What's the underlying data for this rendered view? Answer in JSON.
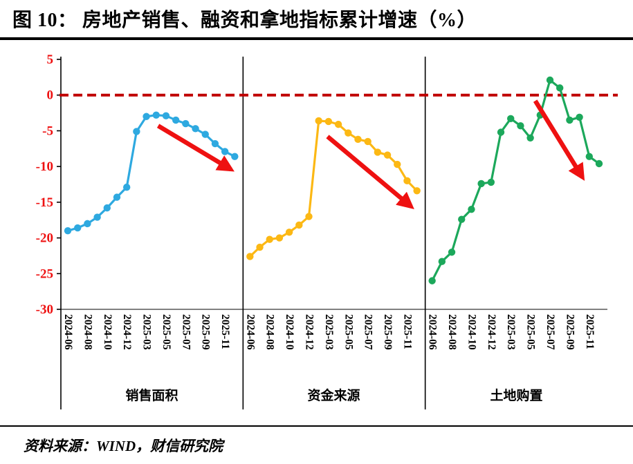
{
  "header": {
    "title": "图 10：  房地产销售、融资和拿地指标累计增速（%）"
  },
  "footer": {
    "source": "资料来源：WIND，财信研究院"
  },
  "chart_data": {
    "type": "line",
    "figure_label": "图 10",
    "title": "房地产销售、融资和拿地指标累计增速（%）",
    "unit": "%",
    "ylim": [
      -30,
      5
    ],
    "y_ticks": [
      5,
      0,
      -5,
      -10,
      -15,
      -20,
      -25,
      -30
    ],
    "grid": false,
    "x": [
      "2024-06",
      "2024-07",
      "2024-08",
      "2024-09",
      "2024-10",
      "2024-11",
      "2024-12",
      "2025-02",
      "2025-03",
      "2025-04",
      "2025-05",
      "2025-06",
      "2025-07",
      "2025-08",
      "2025-09",
      "2025-10",
      "2025-11",
      "2025-12"
    ],
    "x_labels_shown": [
      "2024-06",
      "2024-08",
      "2024-10",
      "2024-12",
      "2025-03",
      "2025-05",
      "2025-07",
      "2025-09",
      "2025-11"
    ],
    "zero_line": {
      "value": 0,
      "style": "dashed",
      "color": "#C00000"
    },
    "colors": {
      "axis": "#000000",
      "red": "#EE1111",
      "zero_line": "#C00000",
      "arrow": "#EE1111"
    },
    "panels": [
      {
        "id": "sales-area",
        "name": "销售面积",
        "color": "#2EA9E0",
        "values": [
          -19.0,
          -18.6,
          -18.0,
          -17.1,
          -15.8,
          -14.3,
          -12.9,
          -5.1,
          -3.0,
          -2.8,
          -2.9,
          -3.5,
          -4.0,
          -4.7,
          -5.5,
          -6.8,
          -7.9,
          -8.6
        ]
      },
      {
        "id": "funding-sources",
        "name": "资金来源",
        "color": "#FCB814",
        "values": [
          -22.6,
          -21.3,
          -20.2,
          -20.0,
          -19.2,
          -18.2,
          -17.0,
          -3.6,
          -3.7,
          -4.1,
          -5.3,
          -6.2,
          -6.5,
          -8.0,
          -8.4,
          -9.7,
          -12.0,
          -13.4
        ]
      },
      {
        "id": "land-purchase",
        "name": "土地购置",
        "color": "#1CA85B",
        "values": [
          -26.0,
          -23.3,
          -22.0,
          -17.4,
          -16.0,
          -12.4,
          -12.2,
          -5.2,
          -3.3,
          -4.3,
          -6.0,
          -2.8,
          2.1,
          1.0,
          -3.5,
          -3.1,
          -8.6,
          -9.6
        ]
      }
    ],
    "annotations": {
      "arrows": [
        {
          "panel": 0,
          "from": [
            9.2,
            -4.3
          ],
          "to": [
            16.6,
            -10.4
          ]
        },
        {
          "panel": 1,
          "from": [
            7.9,
            -5.8
          ],
          "to": [
            16.4,
            -15.6
          ]
        },
        {
          "panel": 2,
          "from": [
            10.5,
            -0.8
          ],
          "to": [
            15.3,
            -11.5
          ]
        }
      ]
    }
  }
}
